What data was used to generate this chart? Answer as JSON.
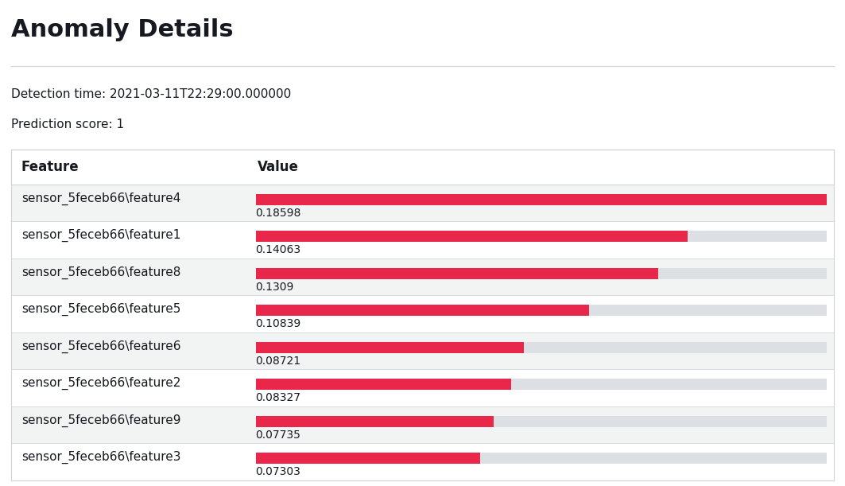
{
  "title": "Anomaly Details",
  "detection_time": "Detection time: 2021-03-11T22:29:00.000000",
  "prediction_score": "Prediction score: 1",
  "col_feature": "Feature",
  "col_value": "Value",
  "features": [
    "sensor_5feceb66\\feature4",
    "sensor_5feceb66\\feature1",
    "sensor_5feceb66\\feature8",
    "sensor_5feceb66\\feature5",
    "sensor_5feceb66\\feature6",
    "sensor_5feceb66\\feature2",
    "sensor_5feceb66\\feature9",
    "sensor_5feceb66\\feature3"
  ],
  "values": [
    0.18598,
    0.14063,
    0.1309,
    0.10839,
    0.08721,
    0.08327,
    0.07735,
    0.07303
  ],
  "max_value": 0.18598,
  "bar_color": "#e8274b",
  "bar_bg_color": "#dce0e5",
  "header_bg": "#ffffff",
  "row_bg_odd": "#f2f3f3",
  "row_bg_even": "#ffffff",
  "table_border_color": "#d0d4d9",
  "title_fontsize": 22,
  "header_fontsize": 12,
  "label_fontsize": 11,
  "value_fontsize": 10,
  "meta_fontsize": 11,
  "bg_color": "#ffffff",
  "text_color": "#16191f",
  "header_text_color": "#16191f"
}
